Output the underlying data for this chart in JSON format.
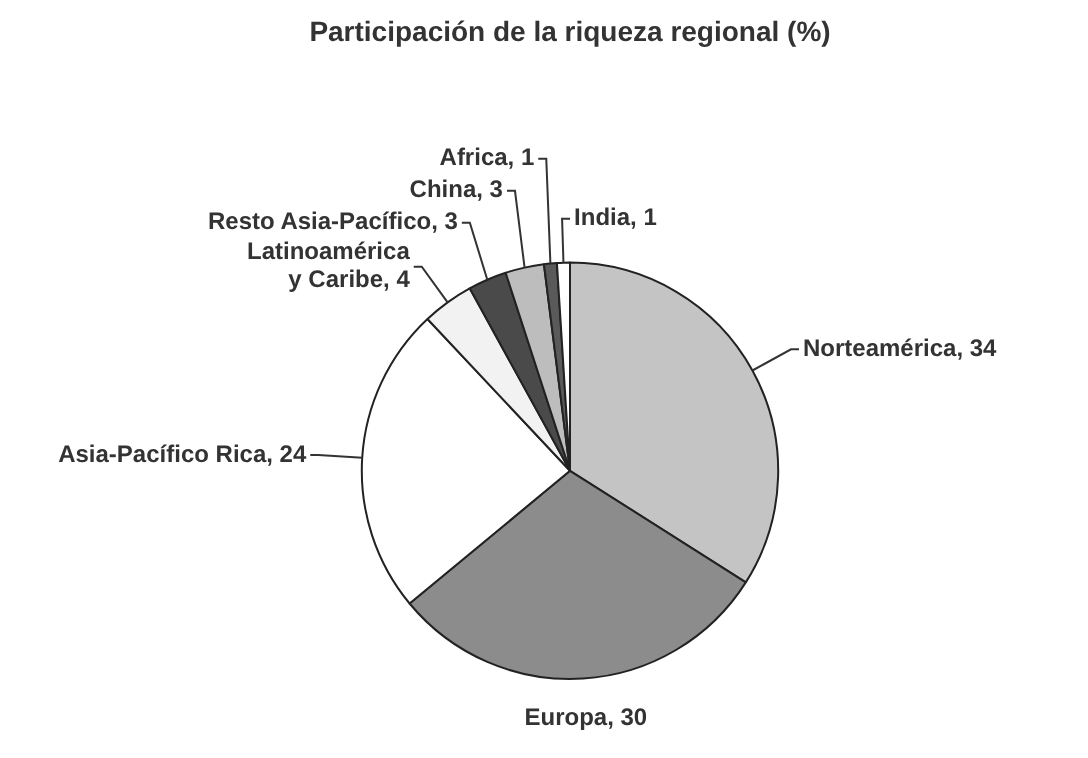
{
  "chart_data": {
    "type": "pie",
    "title": "Participación de la riqueza regional (%)",
    "categories": [
      "Norteamérica, 34",
      "Europa, 30",
      "Asia-Pacífico Rica, 24",
      "Latinoamérica y Caribe, 4",
      "Resto Asia-Pacífico, 3",
      "China, 3",
      "Africa, 1",
      "India, 1"
    ],
    "values": [
      34,
      30,
      24,
      4,
      3,
      3,
      1,
      1
    ],
    "colors": [
      "#c4c4c4",
      "#8c8c8c",
      "#ffffff",
      "#f2f2f2",
      "#4a4a4a",
      "#bdbdbd",
      "#5a5a5a",
      "#ffffff"
    ],
    "legend": false
  }
}
